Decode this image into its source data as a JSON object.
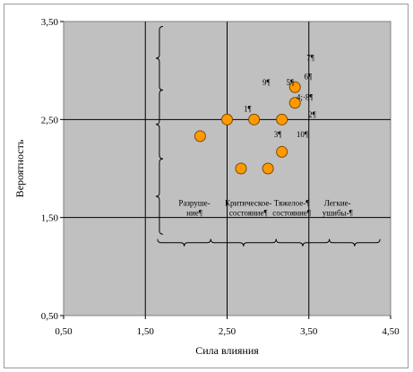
{
  "chart_data": {
    "type": "scatter",
    "title": "",
    "xlabel": "Сила влияния",
    "ylabel": "Вероятность",
    "xlim": [
      0.5,
      4.5
    ],
    "ylim": [
      0.5,
      3.5
    ],
    "x_ticks": [
      "0,50",
      "1,50",
      "2,50",
      "3,50",
      "4,50"
    ],
    "y_ticks": [
      "0,50",
      "1,50",
      "2,50",
      "3,50"
    ],
    "grid": true,
    "plot_background": "#c0c0c0",
    "marker_color": "#ff9900",
    "marker_edge": "#7a4a00",
    "points": [
      {
        "x": 2.17,
        "y": 2.33
      },
      {
        "x": 2.5,
        "y": 2.5
      },
      {
        "x": 2.83,
        "y": 2.5
      },
      {
        "x": 3.17,
        "y": 2.5
      },
      {
        "x": 3.33,
        "y": 2.83
      },
      {
        "x": 3.33,
        "y": 2.67
      },
      {
        "x": 2.67,
        "y": 2.0
      },
      {
        "x": 3.0,
        "y": 2.0
      },
      {
        "x": 3.17,
        "y": 2.17
      }
    ],
    "point_labels": [
      {
        "text": "7¶",
        "x": 3.52,
        "y": 3.1
      },
      {
        "text": "9¶",
        "x": 2.98,
        "y": 2.85
      },
      {
        "text": "5¶",
        "x": 3.27,
        "y": 2.85
      },
      {
        "text": "6¶",
        "x": 3.49,
        "y": 2.91
      },
      {
        "text": "4;·8¶",
        "x": 3.45,
        "y": 2.7
      },
      {
        "text": "1¶",
        "x": 2.75,
        "y": 2.58
      },
      {
        "text": "2¶",
        "x": 3.54,
        "y": 2.52
      },
      {
        "text": "3¶",
        "x": 3.12,
        "y": 2.32
      },
      {
        "text": "10¶",
        "x": 3.42,
        "y": 2.32
      }
    ],
    "zone_labels": [
      {
        "lines": [
          "Разруше-",
          "ние¶"
        ],
        "x": 2.1
      },
      {
        "lines": [
          "Критическое-",
          "состояние¶"
        ],
        "x": 2.76
      },
      {
        "lines": [
          "Тяжелое-¶",
          "состояние¶"
        ],
        "x": 3.29
      },
      {
        "lines": [
          "Легкие-",
          "ушибы-¶"
        ],
        "x": 3.85
      }
    ],
    "zone_braces_x": [
      1.65,
      2.3,
      3.1,
      3.75,
      4.37
    ]
  }
}
